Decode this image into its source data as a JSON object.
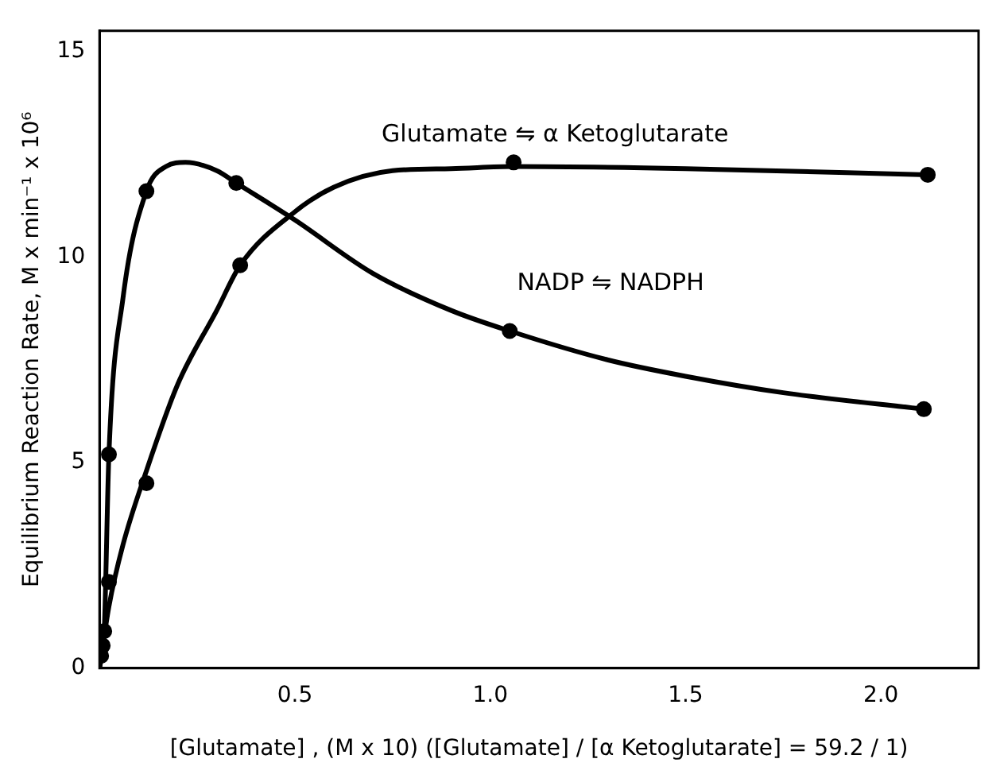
{
  "chart_data": {
    "type": "scatter",
    "xlabel": "[Glutamate] , (M x 10) ([Glutamate] / [α Ketoglutarate] = 59.2 / 1)",
    "ylabel": "Equilibrium Reaction Rate, M x min⁻¹ x 10⁶",
    "xlim": [
      0,
      2.25
    ],
    "ylim": [
      0,
      15.5
    ],
    "xticks": [
      0.5,
      {
        "value": 1,
        "label": "1.0"
      },
      1.5,
      {
        "value": 2,
        "label": "2.0"
      }
    ],
    "yticks": [
      0,
      5,
      10,
      15
    ],
    "grid": false,
    "legend": false,
    "marker": "circle",
    "series": [
      {
        "type": "scatter",
        "color": "#000000",
        "x": [
          0.012,
          0.024,
          0.12,
          0.35,
          1.05,
          2.11
        ],
        "values": [
          0.9,
          5.2,
          11.6,
          11.8,
          8.2,
          6.3
        ]
      },
      {
        "type": "scatter",
        "color": "#000000",
        "x": [
          0.004,
          0.008,
          0.024,
          0.12,
          0.36,
          1.06,
          2.12
        ],
        "values": [
          0.3,
          0.55,
          2.1,
          4.5,
          9.8,
          12.3,
          12.0
        ]
      },
      {
        "type": "line",
        "name": "NADP ⇋ NADPH",
        "color": "#000000",
        "line_style": "solid",
        "marker": "none",
        "x": [
          0,
          0.012,
          0.024,
          0.06,
          0.12,
          0.17,
          0.22,
          0.3,
          0.35,
          0.5,
          0.7,
          0.9,
          1.05,
          1.3,
          1.5,
          1.75,
          2.11
        ],
        "values": [
          0,
          0.9,
          5.2,
          9,
          11.6,
          12.2,
          12.3,
          12.1,
          11.8,
          10.9,
          9.6,
          8.7,
          8.2,
          7.5,
          7.1,
          6.7,
          6.3
        ]
      },
      {
        "type": "line",
        "name": "Glutamate ⇋ α Ketoglutarate",
        "color": "#000000",
        "line_style": "solid",
        "marker": "none",
        "x": [
          0,
          0.024,
          0.06,
          0.12,
          0.2,
          0.3,
          0.36,
          0.5,
          0.6,
          0.75,
          0.9,
          1.06,
          1.5,
          2.12
        ],
        "values": [
          0,
          1.5,
          3,
          4.8,
          6.9,
          8.7,
          9.8,
          11.1,
          11.7,
          12.1,
          12.15,
          12.2,
          12.15,
          12.0
        ]
      }
    ]
  }
}
